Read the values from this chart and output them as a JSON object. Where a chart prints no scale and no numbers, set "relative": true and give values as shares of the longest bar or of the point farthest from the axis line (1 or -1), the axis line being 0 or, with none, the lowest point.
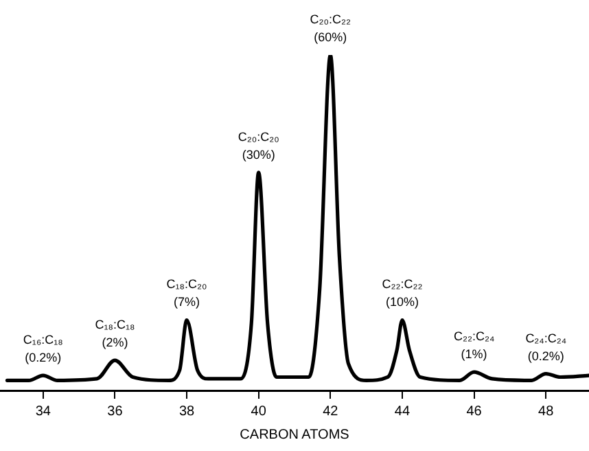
{
  "chart_data": {
    "type": "line",
    "relative": true,
    "xlabel": "CARBON ATOMS",
    "xlim": [
      32.8,
      49.2
    ],
    "xticks": [
      34,
      36,
      38,
      40,
      42,
      44,
      46,
      48
    ],
    "series": [
      {
        "color": "#000000",
        "x": [
          33,
          33.6,
          34,
          34.4,
          35.5,
          36,
          36.5,
          37.5,
          37.8,
          38,
          38.3,
          38.6,
          39.5,
          39.8,
          40,
          40.25,
          40.5,
          41.4,
          41.7,
          42,
          42.25,
          42.5,
          43,
          43.6,
          43.85,
          44,
          44.2,
          44.5,
          45.6,
          46,
          46.5,
          47.6,
          48,
          48.4,
          49.2
        ],
        "values": [
          0.03,
          0.03,
          0.045,
          0.03,
          0.035,
          0.09,
          0.04,
          0.03,
          0.06,
          0.21,
          0.06,
          0.035,
          0.035,
          0.2,
          0.65,
          0.2,
          0.04,
          0.04,
          0.3,
          1,
          0.4,
          0.08,
          0.03,
          0.04,
          0.12,
          0.21,
          0.12,
          0.04,
          0.03,
          0.055,
          0.035,
          0.03,
          0.05,
          0.04,
          0.045
        ]
      }
    ],
    "annotations": [
      {
        "text": "C₁₆:C₁₈\n(0.2%)",
        "x": 34,
        "y": 0.045
      },
      {
        "text": "C₁₈:C₁₈\n(2%)",
        "x": 36,
        "y": 0.09
      },
      {
        "text": "C₁₈:C₂₀\n(7%)",
        "x": 38,
        "y": 0.21
      },
      {
        "text": "C₂₀:C₂₀\n(30%)",
        "x": 40,
        "y": 0.65
      },
      {
        "text": "C₂₀:C₂₂\n(60%)",
        "x": 42,
        "y": 1
      },
      {
        "text": "C₂₂:C₂₂\n(10%)",
        "x": 44,
        "y": 0.21
      },
      {
        "text": "C₂₂:C₂₄\n(1%)",
        "x": 46,
        "y": 0.055
      },
      {
        "text": "C₂₄:C₂₄\n(0.2%)",
        "x": 48,
        "y": 0.05
      }
    ],
    "grid": false,
    "legend": false,
    "marker": "none",
    "line_style": "solid"
  }
}
